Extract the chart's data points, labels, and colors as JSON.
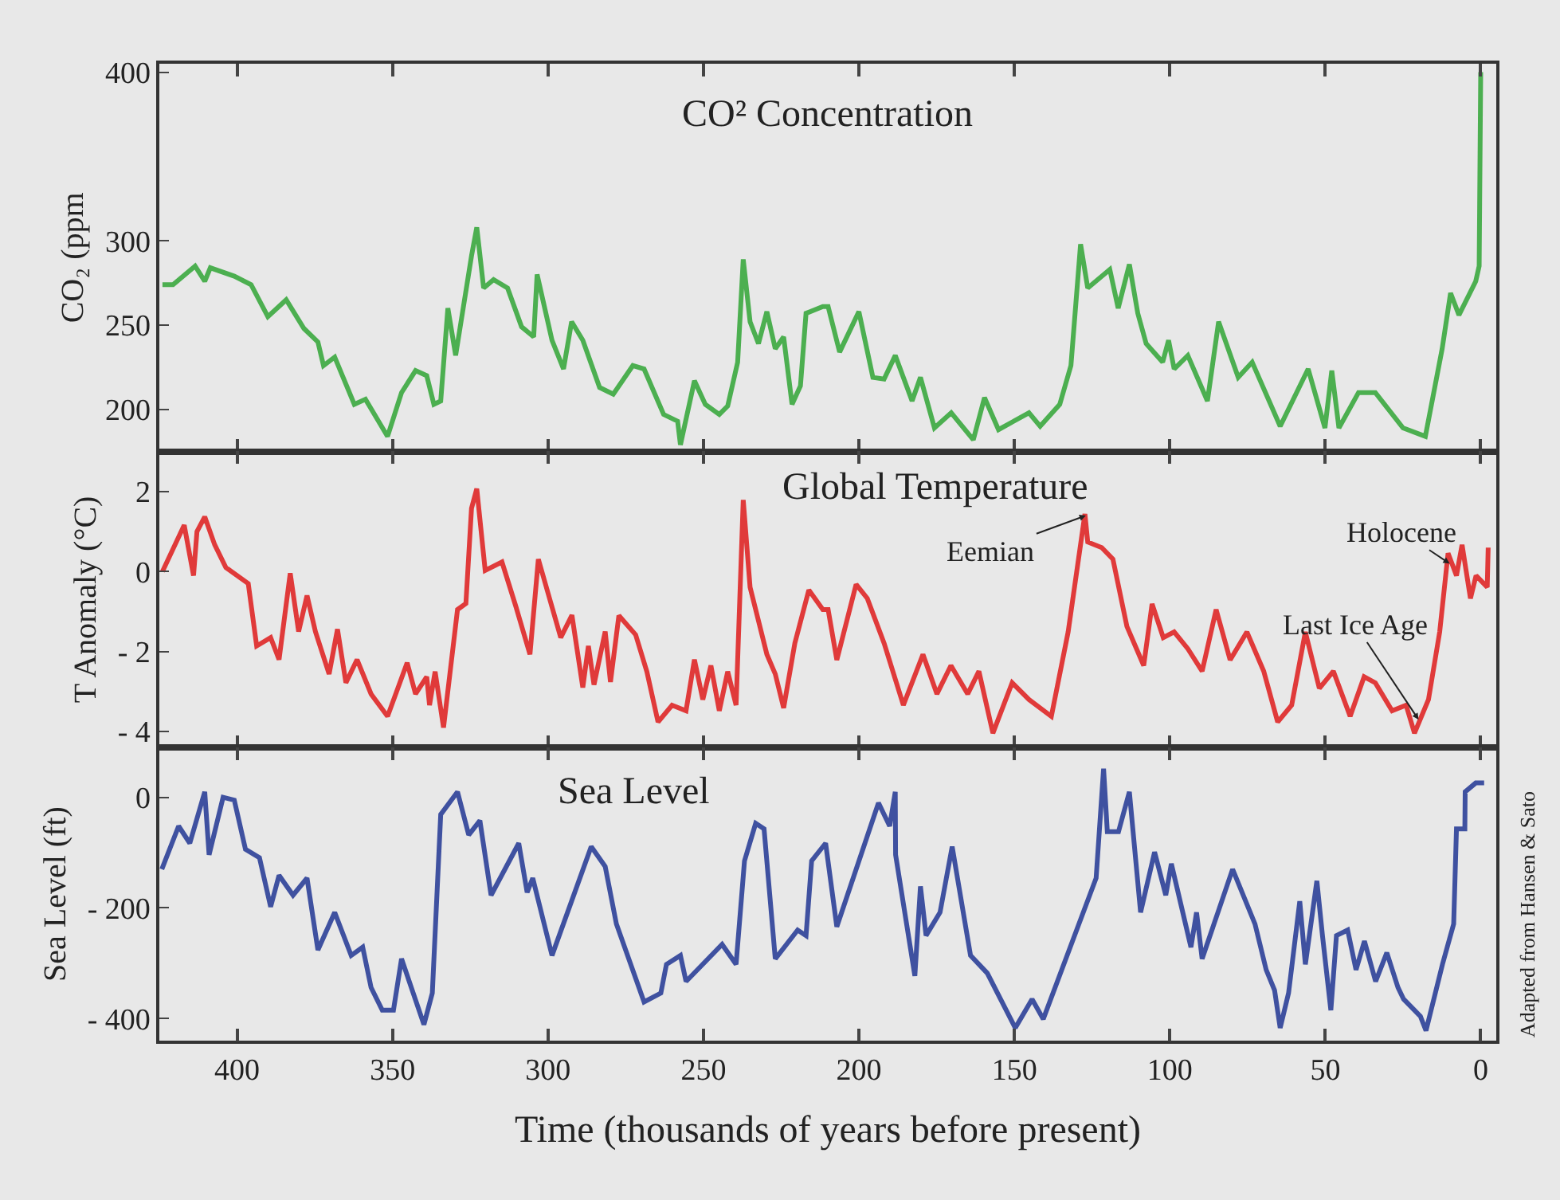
{
  "chart_data": [
    {
      "type": "line",
      "title": "CO² Concentration",
      "ylabel": "CO₂ (ppm",
      "series": [
        {
          "color": "#4caf50",
          "x": [
            424,
            420.6,
            413.5,
            410.4,
            408.6,
            400.9,
            395.5,
            390.1,
            384.2,
            378.5,
            374,
            372.2,
            368.6,
            362.3,
            358.7,
            351.6,
            347.1,
            342.6,
            339,
            336.7,
            334.5,
            332.2,
            329.7,
            324.6,
            322.9,
            320.7,
            317.5,
            313,
            308.5,
            304.6,
            303.5,
            298.7,
            295,
            292.4,
            288.8,
            283.4,
            279,
            272.7,
            269.1,
            262.8,
            258.3,
            257.4,
            252.9,
            249.4,
            244.9,
            242.2,
            239,
            237.2,
            235,
            232.3,
            229.6,
            226.9,
            224.2,
            221.5,
            218.8,
            217,
            211.6,
            209.9,
            206.2,
            200,
            195.5,
            191.9,
            188.3,
            182.9,
            180.2,
            175.7,
            170.3,
            163.2,
            159.6,
            155.1,
            145.3,
            141.7,
            135.4,
            131.8,
            128.7,
            126.4,
            119.3,
            116.6,
            113,
            110.3,
            107.6,
            102.3,
            100.4,
            98.6,
            94.2,
            87.9,
            84.3,
            78,
            73.5,
            64.5,
            55.5,
            50.1,
            47.9,
            45.6,
            39.3,
            33.9,
            25,
            17.8,
            12.4,
            9.7,
            7,
            1.6,
            0.5,
            0
          ],
          "values": [
            274,
            274,
            285,
            276,
            284,
            279,
            274,
            255,
            265,
            248,
            240,
            226,
            231,
            203,
            206,
            184,
            210,
            223,
            220,
            203,
            205,
            260,
            232,
            291,
            308,
            272,
            277,
            272,
            249,
            243,
            280,
            241,
            224,
            252,
            241,
            213,
            209,
            226,
            224,
            197,
            193,
            179,
            217,
            203,
            197,
            202,
            228,
            289,
            252,
            239,
            258,
            236,
            243,
            203,
            214,
            257,
            261,
            261,
            234,
            258,
            219,
            218,
            232,
            205,
            219,
            189,
            198,
            182,
            207,
            188,
            198,
            190,
            203,
            226,
            298,
            272,
            283,
            260,
            286,
            257,
            239,
            228,
            241,
            224,
            232,
            205,
            252,
            219,
            228,
            190,
            224,
            189,
            223,
            189,
            210,
            210,
            189,
            184,
            236,
            269,
            256,
            276,
            285,
            400
          ]
        }
      ],
      "xlim": [
        425,
        -5
      ],
      "xticks": [
        {
          "value": 400,
          "label": null
        },
        {
          "value": 350,
          "label": null
        },
        {
          "value": 300,
          "label": null
        },
        {
          "value": 250,
          "label": null
        },
        {
          "value": 200,
          "label": null
        },
        {
          "value": 150,
          "label": null
        },
        {
          "value": 100,
          "label": null
        },
        {
          "value": 50,
          "label": null
        },
        {
          "value": 0,
          "label": null
        }
      ],
      "ylim": [
        175,
        405
      ],
      "yticks": [
        200,
        250,
        300,
        400
      ],
      "tick_labels": "y",
      "marker": "none",
      "line_style": "solid"
    },
    {
      "type": "line",
      "title": "Global Temperature",
      "ylabel": "T Anomaly (°C)",
      "series": [
        {
          "color": "#e03a3a",
          "x": [
            424,
            417,
            414,
            412.9,
            410.4,
            407.2,
            403.6,
            396.4,
            393.7,
            389.2,
            386.5,
            382.9,
            380.2,
            377.5,
            374.8,
            370.4,
            367.7,
            365,
            361.4,
            356.9,
            351.6,
            345.3,
            342.6,
            339,
            338.1,
            336.3,
            333.6,
            329.1,
            326.4,
            324.6,
            322.9,
            320.2,
            314.8,
            310.3,
            305.8,
            303.1,
            299.5,
            295.9,
            292.3,
            288.8,
            287,
            285.2,
            281.6,
            279.9,
            277.2,
            271.8,
            268.2,
            264.6,
            260.1,
            255.6,
            252.9,
            250.2,
            247.6,
            244.9,
            242.2,
            239.5,
            237.2,
            235,
            229.6,
            226.9,
            224.2,
            220.6,
            216.1,
            211.6,
            209.9,
            207.1,
            200.9,
            197.3,
            191.9,
            185.7,
            179.4,
            174.9,
            170.4,
            165,
            161.4,
            156.9,
            150.7,
            145.3,
            138.1,
            132.7,
            127.3,
            126.4,
            121.9,
            118.3,
            113.8,
            108.4,
            105.7,
            102.1,
            98.6,
            94.2,
            89.6,
            85.1,
            80.6,
            75.2,
            69.8,
            65.3,
            60.8,
            56.4,
            51.9,
            47.4,
            42,
            37.5,
            33.9,
            28.5,
            24,
            21.3,
            16.8,
            13.2,
            10.5,
            7.8,
            6,
            3.3,
            1.5,
            -2.1,
            -2.4
          ],
          "values": [
            0.0,
            1.16,
            -0.1,
            1.0,
            1.37,
            0.67,
            0.1,
            -0.3,
            -1.86,
            -1.65,
            -2.2,
            -0.04,
            -1.5,
            -0.6,
            -1.5,
            -2.56,
            -1.44,
            -2.78,
            -2.2,
            -3.06,
            -3.62,
            -2.28,
            -3.06,
            -2.63,
            -3.34,
            -2.5,
            -3.9,
            -0.95,
            -0.8,
            1.58,
            2.07,
            0.03,
            0.24,
            -0.88,
            -2.07,
            0.31,
            -0.67,
            -1.65,
            -1.09,
            -2.9,
            -1.86,
            -2.83,
            -1.5,
            -2.76,
            -1.1,
            -1.58,
            -2.5,
            -3.76,
            -3.34,
            -3.48,
            -2.2,
            -3.2,
            -2.35,
            -3.48,
            -2.5,
            -3.34,
            1.79,
            -0.39,
            -2.07,
            -2.56,
            -3.41,
            -1.79,
            -0.46,
            -0.95,
            -0.95,
            -2.21,
            -0.32,
            -0.67,
            -1.79,
            -3.34,
            -2.07,
            -3.06,
            -2.35,
            -3.06,
            -2.49,
            -4.04,
            -2.78,
            -3.2,
            -3.62,
            -1.51,
            1.44,
            0.74,
            0.6,
            0.31,
            -1.37,
            -2.35,
            -0.81,
            -1.65,
            -1.51,
            -1.93,
            -2.49,
            -0.95,
            -2.21,
            -1.51,
            -2.49,
            -3.76,
            -3.34,
            -1.51,
            -2.92,
            -2.49,
            -3.62,
            -2.63,
            -2.78,
            -3.48,
            -3.34,
            -4.04,
            -3.2,
            -1.51,
            0.46,
            -0.1,
            0.67,
            -0.67,
            -0.1,
            -0.39,
            0.6
          ]
        }
      ],
      "annotations": [
        {
          "text": "Eemian",
          "x": 127,
          "y": 1.4
        },
        {
          "text": "Holocene",
          "x": 10,
          "y": 0.2
        },
        {
          "text": "Last Ice Age",
          "x": 20,
          "y": -3.7
        }
      ],
      "xlim": [
        425,
        -5
      ],
      "xticks": [
        {
          "value": 400,
          "label": null
        },
        {
          "value": 350,
          "label": null
        },
        {
          "value": 300,
          "label": null
        },
        {
          "value": 250,
          "label": null
        },
        {
          "value": 200,
          "label": null
        },
        {
          "value": 150,
          "label": null
        },
        {
          "value": 100,
          "label": null
        },
        {
          "value": 50,
          "label": null
        },
        {
          "value": 0,
          "label": null
        }
      ],
      "ylim": [
        -4.4,
        3.0
      ],
      "yticks": [
        2,
        0,
        {
          "value": -2,
          "label": "- 2"
        },
        {
          "value": -4,
          "label": "- 4"
        }
      ],
      "tick_labels": "y",
      "marker": "none",
      "line_style": "solid"
    },
    {
      "type": "line",
      "title": "Sea Level",
      "ylabel": "Sea Level (ft)",
      "xlabel": "Time (thousands of years before present)",
      "series": [
        {
          "color": "#3f51a0",
          "x": [
            424.2,
            418.8,
            415.2,
            410.4,
            409,
            404.5,
            400.9,
            397.3,
            392.8,
            389.2,
            386.5,
            382,
            377.5,
            374,
            368.6,
            363.3,
            359.6,
            356.9,
            353.3,
            349.7,
            347.1,
            339.9,
            337.2,
            334.5,
            329.1,
            325.5,
            321.9,
            318.3,
            309.4,
            306.7,
            304.9,
            298.7,
            286.1,
            281.6,
            278,
            269.1,
            263.7,
            261.9,
            257.4,
            255.6,
            244,
            239.5,
            236.8,
            233.2,
            230.5,
            226.9,
            219.7,
            217,
            215.2,
            210.7,
            207.1,
            193.7,
            190.1,
            188.3,
            188.2,
            182,
            180.2,
            178.4,
            173.9,
            170,
            164.1,
            158.7,
            149.7,
            144.3,
            140.7,
            123.7,
            121.3,
            120.1,
            116.5,
            113,
            109.4,
            104.9,
            101.3,
            99.5,
            93.2,
            91.4,
            89.6,
            79.8,
            72.6,
            69,
            66.3,
            64.5,
            61.8,
            58.2,
            56.4,
            52.7,
            50.9,
            48.2,
            46.4,
            42.8,
            40.1,
            37.4,
            33.8,
            30.2,
            26.6,
            24.8,
            19.4,
            17.6,
            12.3,
            8.7,
            7.8,
            5.1,
            5,
            1.6,
            -1.1
          ],
          "values": [
            -130,
            -52,
            -83,
            10,
            -104,
            0,
            -5,
            -94,
            -109,
            -198,
            -141,
            -177,
            -146,
            -276,
            -208,
            -286,
            -271,
            -344,
            -385,
            -385,
            -292,
            -411,
            -354,
            -31,
            10,
            -68,
            -42,
            -177,
            -83,
            -172,
            -146,
            -286,
            -89,
            -125,
            -229,
            -370,
            -354,
            -302,
            -286,
            -333,
            -266,
            -302,
            -115,
            -47,
            -57,
            -292,
            -240,
            -250,
            -115,
            -83,
            -234,
            -10,
            -52,
            10,
            -104,
            -323,
            -161,
            -250,
            -208,
            -89,
            -286,
            -318,
            -417,
            -365,
            -401,
            -146,
            52,
            -62,
            -62,
            10,
            -208,
            -99,
            -177,
            -120,
            -271,
            -208,
            -292,
            -130,
            -229,
            -312,
            -349,
            -417,
            -354,
            -188,
            -302,
            -151,
            -250,
            -385,
            -250,
            -240,
            -312,
            -260,
            -333,
            -281,
            -344,
            -365,
            -396,
            -422,
            -302,
            -229,
            -57,
            -57,
            10,
            26,
            26
          ]
        }
      ],
      "annotations": [
        "Adapted from Hansen & Sato"
      ],
      "xlim": [
        425,
        -5
      ],
      "xticks": [
        400,
        350,
        300,
        250,
        200,
        150,
        100,
        50,
        0
      ],
      "ylim": [
        -440,
        90
      ],
      "yticks": [
        0,
        {
          "value": -200,
          "label": "- 200"
        },
        {
          "value": -400,
          "label": "- 400"
        }
      ],
      "marker": "none",
      "line_style": "solid"
    }
  ]
}
